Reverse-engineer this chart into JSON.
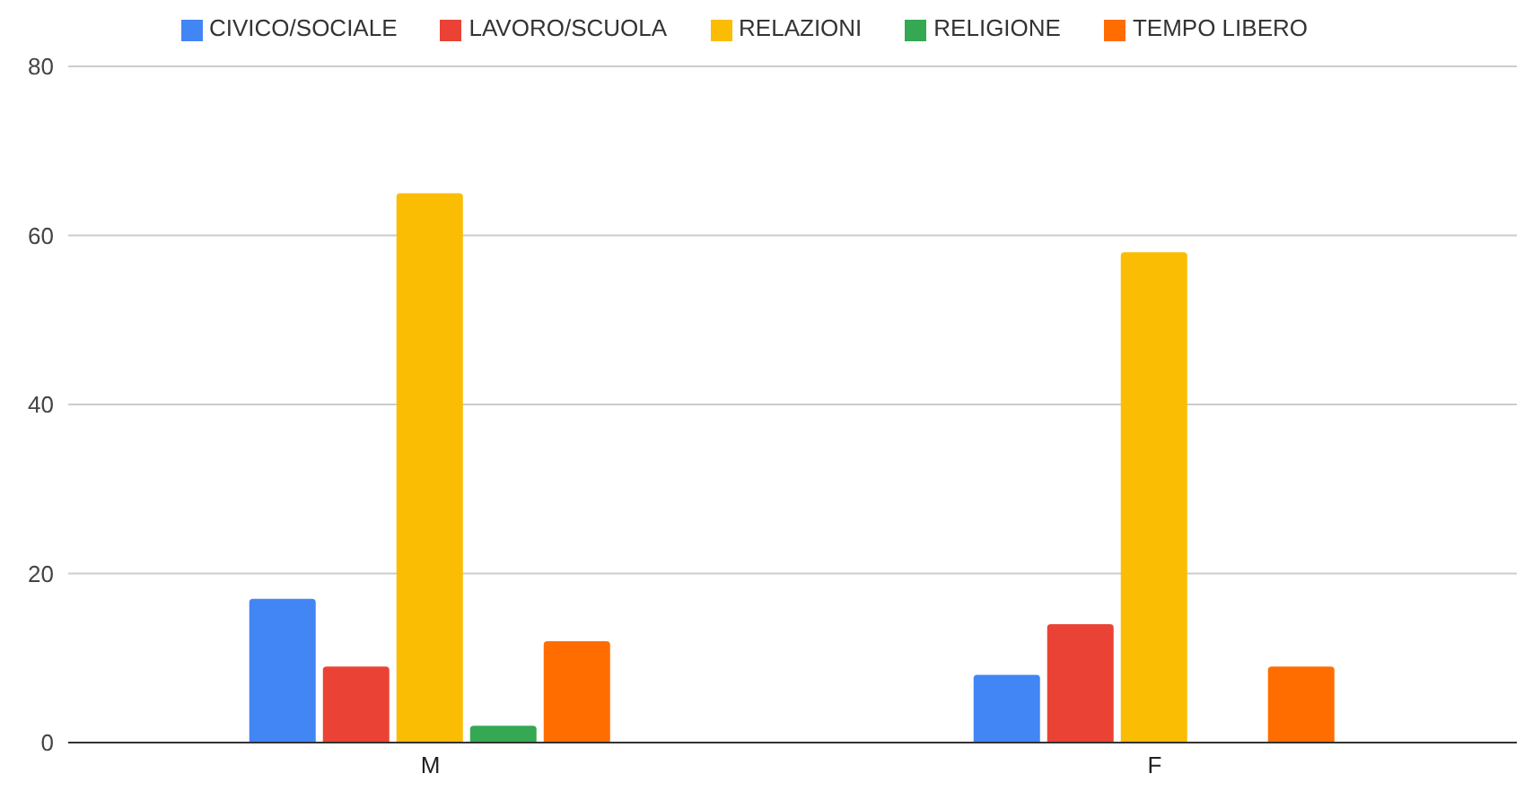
{
  "chart_data": {
    "type": "bar",
    "categories": [
      "M",
      "F"
    ],
    "series": [
      {
        "name": "CIVICO/SOCIALE",
        "color": "#4285f4",
        "values": [
          17,
          8
        ]
      },
      {
        "name": "LAVORO/SCUOLA",
        "color": "#ea4335",
        "values": [
          9,
          14
        ]
      },
      {
        "name": "RELAZIONI",
        "color": "#fbbc04",
        "values": [
          65,
          58
        ]
      },
      {
        "name": "RELIGIONE",
        "color": "#34a853",
        "values": [
          2,
          0
        ]
      },
      {
        "name": "TEMPO LIBERO",
        "color": "#ff6d01",
        "values": [
          12,
          9
        ]
      }
    ],
    "ylim": [
      0,
      80
    ],
    "yticks": [
      0,
      20,
      40,
      60,
      80
    ],
    "grid": "y",
    "legend": "top"
  }
}
